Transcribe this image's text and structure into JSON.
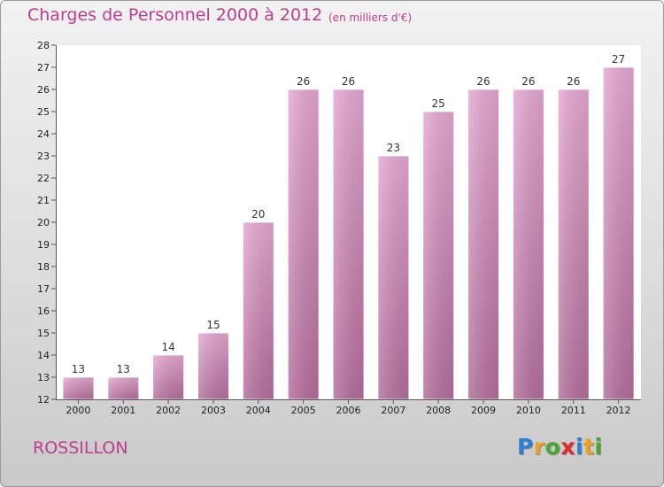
{
  "title": "Charges de Personnel 2000 à 2012",
  "unit_note": "(en milliers d'€)",
  "town": "ROSSILLON",
  "logo": {
    "letters": [
      "P",
      "r",
      "o",
      "x",
      "i",
      "t",
      "i"
    ],
    "colors": [
      "#2b7fd4",
      "#f0a020",
      "#4aa82c",
      "#e0282c",
      "#2b7fd4",
      "#f0a020",
      "#4aa82c"
    ]
  },
  "colors": {
    "accent": "#c03c8c",
    "bar": "#d98fc0"
  },
  "chart_data": {
    "type": "bar",
    "title": "Charges de Personnel 2000 à 2012",
    "subtitle": "(en milliers d'€)",
    "categories": [
      "2000",
      "2001",
      "2002",
      "2003",
      "2004",
      "2005",
      "2006",
      "2007",
      "2008",
      "2009",
      "2010",
      "2011",
      "2012"
    ],
    "values": [
      13,
      13,
      14,
      15,
      20,
      26,
      26,
      23,
      25,
      26,
      26,
      26,
      27
    ],
    "ylim": [
      12,
      28
    ],
    "yticks": [
      12,
      13,
      14,
      15,
      16,
      17,
      18,
      19,
      20,
      21,
      22,
      23,
      24,
      25,
      26,
      27,
      28
    ],
    "grid": false,
    "xlabel": "",
    "ylabel": ""
  }
}
